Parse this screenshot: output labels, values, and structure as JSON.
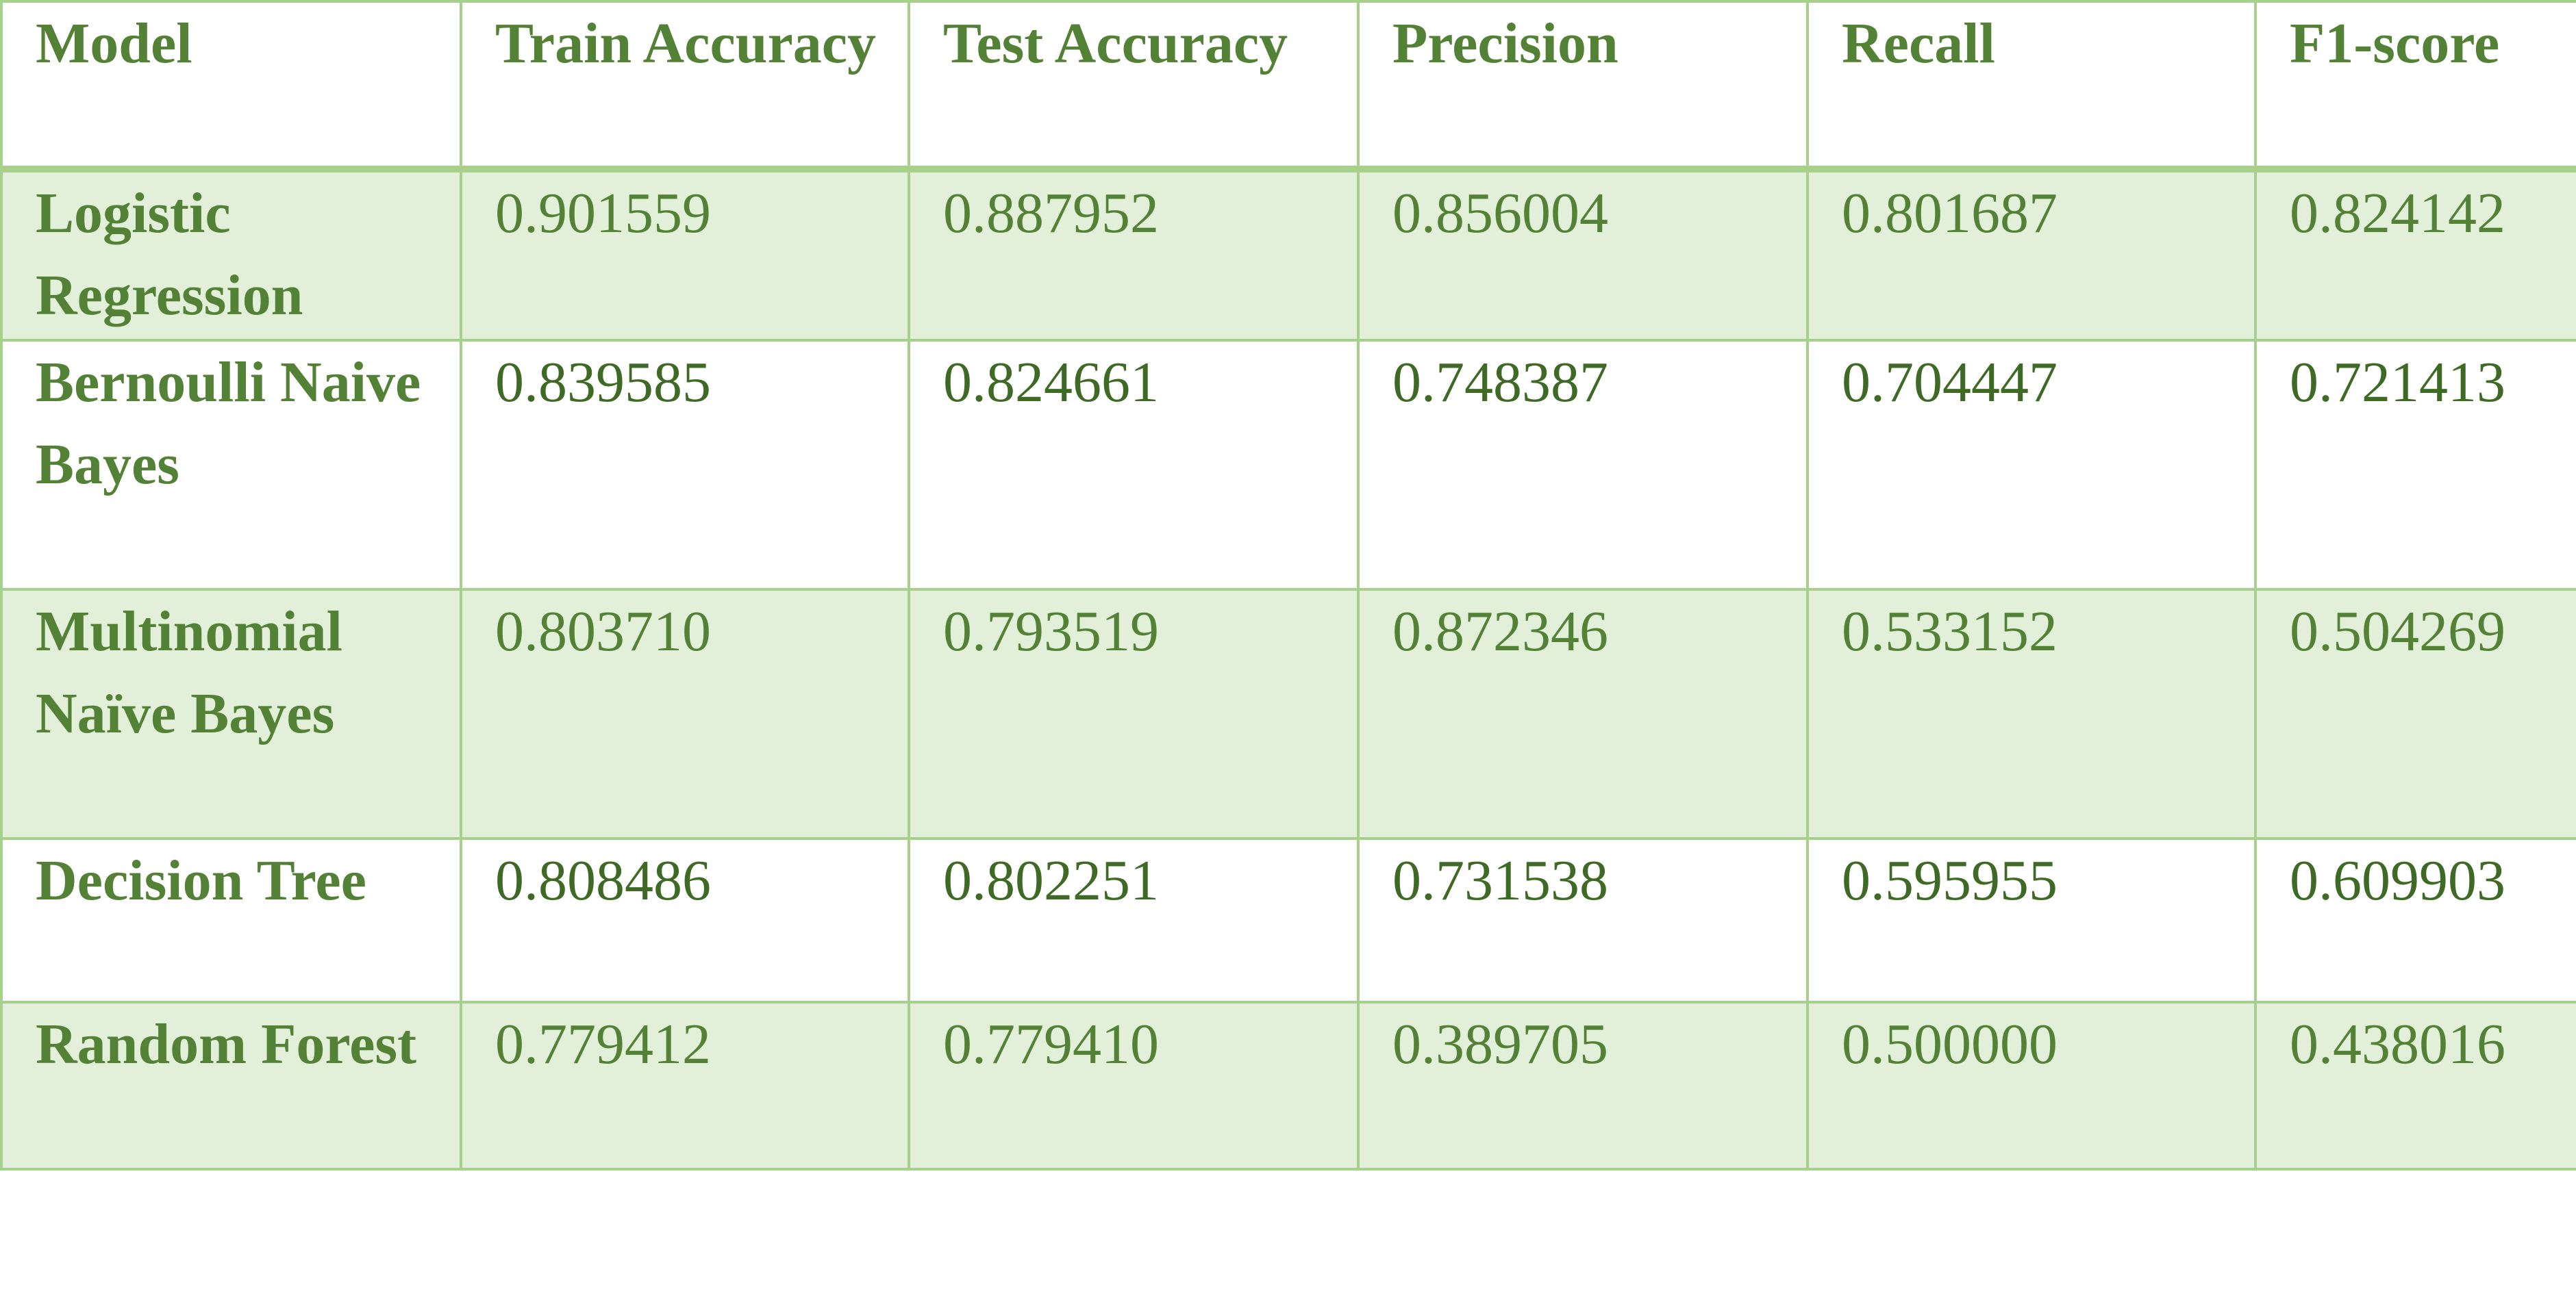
{
  "table": {
    "columns": [
      "Model",
      "Train Accuracy",
      "Test Accuracy",
      "Precision",
      "Recall",
      "F1-score"
    ],
    "rows": [
      {
        "model": "Logistic Regression",
        "values": [
          "0.901559",
          "0.887952",
          "0.856004",
          "0.801687",
          "0.824142"
        ]
      },
      {
        "model": "Bernoulli Naive Bayes",
        "values": [
          "0.839585",
          "0.824661",
          "0.748387",
          "0.704447",
          "0.721413"
        ]
      },
      {
        "model": "Multinomial Naïve Bayes",
        "values": [
          "0.803710",
          "0.793519",
          "0.872346",
          "0.533152",
          "0.504269"
        ]
      },
      {
        "model": "Decision Tree",
        "values": [
          "0.808486",
          "0.802251",
          "0.731538",
          "0.595955",
          "0.609903"
        ]
      },
      {
        "model": "Random Forest",
        "values": [
          "0.779412",
          "0.779410",
          "0.389705",
          "0.500000",
          "0.438016"
        ]
      }
    ]
  },
  "colors": {
    "text": "#538135",
    "border": "#a8d08d",
    "band": "#e2efd9"
  }
}
